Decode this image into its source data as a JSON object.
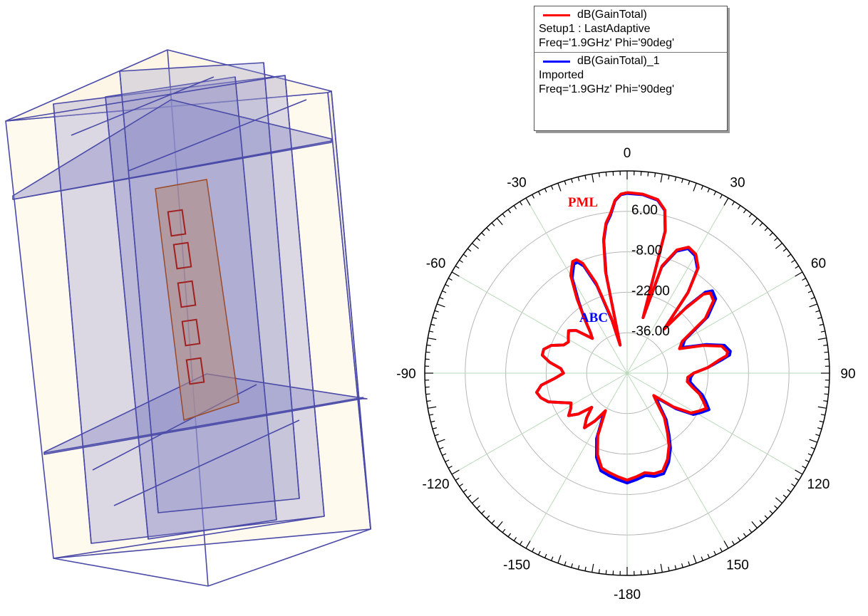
{
  "colors": {
    "series_a": "#ff0000",
    "series_b": "#0000ff",
    "grid": "#b9d8b9",
    "frame": "#000000"
  },
  "chart_data": {
    "type": "polar-line",
    "angle_unit": "deg",
    "angle_ticks": [
      "0",
      "30",
      "60",
      "90",
      "120",
      "150",
      "-180",
      "-150",
      "-120",
      "-90",
      "-60",
      "-30"
    ],
    "radial_ticks": [
      "6.00",
      "-8.00",
      "-22.00",
      "-36.00"
    ],
    "rlim": [
      -50,
      20
    ],
    "grid": true,
    "legend_position": "top-right",
    "annotations": [
      {
        "text": "PML",
        "color": "#ff0000"
      },
      {
        "text": "ABC",
        "color": "#0000ff"
      }
    ],
    "series": [
      {
        "name": "dB(GainTotal)",
        "legend_lines": [
          "Setup1 : LastAdaptive",
          "Freq='1.9GHz' Phi='90deg'"
        ],
        "color": "#ff0000",
        "theta": [
          0,
          5,
          10,
          13,
          15,
          16,
          18,
          22,
          26,
          30,
          34,
          37,
          40,
          42,
          44,
          46,
          50,
          55,
          60,
          65,
          70,
          74,
          78,
          80,
          82,
          86,
          90,
          94,
          98,
          102,
          106,
          110,
          114,
          118,
          122,
          126,
          130,
          134,
          140,
          146,
          150,
          155,
          160,
          165,
          170,
          175,
          180,
          185,
          190,
          195,
          200,
          205,
          210,
          214,
          218,
          222,
          226,
          230,
          234,
          238,
          242,
          246,
          250,
          254,
          258,
          262,
          266,
          270,
          274,
          278,
          282,
          286,
          290,
          294,
          298,
          302,
          306,
          310,
          315,
          318,
          322,
          326,
          330,
          334,
          336,
          338,
          341,
          344,
          346,
          348,
          350,
          352,
          354,
          356,
          358,
          360
        ],
        "r": [
          12.5,
          12.2,
          11,
          8,
          1,
          -30,
          -11,
          -4,
          -1.5,
          -2.5,
          -6,
          -15,
          -30,
          -20,
          -12,
          -10,
          -11,
          -17,
          -28,
          -30,
          -22,
          -16,
          -14.5,
          -15,
          -18,
          -22,
          -27,
          -29,
          -29,
          -27,
          -24,
          -22,
          -20,
          -22,
          -24,
          -30,
          -38,
          -36,
          -30,
          -25,
          -21,
          -17,
          -14,
          -14,
          -15,
          -14,
          -13,
          -14,
          -15,
          -16,
          -20,
          -26,
          -35,
          -30,
          -26,
          -29,
          -33,
          -28,
          -25,
          -27,
          -28,
          -25,
          -21,
          -19,
          -18,
          -20,
          -25,
          -28,
          -27,
          -23,
          -20,
          -20,
          -22,
          -26,
          -27,
          -26,
          -25,
          -27,
          -33,
          -31,
          -26,
          -19,
          -11,
          -7,
          -7,
          -9,
          -17,
          -30,
          -40,
          -14,
          -3,
          2.5,
          5.5,
          10,
          12,
          12.5
        ]
      },
      {
        "name": "dB(GainTotal)_1",
        "legend_lines": [
          "Imported",
          "Freq='1.9GHz' Phi='90deg'"
        ],
        "color": "#0000ff",
        "theta": [
          0,
          5,
          10,
          13,
          15,
          16,
          18,
          22,
          26,
          30,
          34,
          37,
          40,
          42,
          44,
          46,
          50,
          55,
          60,
          65,
          70,
          74,
          78,
          80,
          82,
          86,
          90,
          94,
          98,
          102,
          106,
          110,
          114,
          118,
          122,
          126,
          130,
          134,
          140,
          146,
          150,
          155,
          160,
          165,
          170,
          175,
          180,
          185,
          190,
          195,
          200,
          205,
          210,
          214,
          218,
          222,
          226,
          230,
          234,
          238,
          242,
          246,
          250,
          254,
          258,
          262,
          266,
          270,
          274,
          278,
          282,
          286,
          290,
          294,
          298,
          302,
          306,
          310,
          315,
          318,
          322,
          326,
          330,
          334,
          336,
          338,
          341,
          344,
          346,
          348,
          350,
          352,
          354,
          356,
          358,
          360
        ],
        "r": [
          12.2,
          12,
          10.8,
          7.8,
          0.8,
          -30,
          -11.4,
          -4.5,
          -2,
          -3,
          -6.5,
          -15,
          -30,
          -19,
          -11,
          -9,
          -10,
          -16,
          -27,
          -29,
          -21,
          -15,
          -13.5,
          -14,
          -17,
          -22,
          -27,
          -28,
          -28,
          -26,
          -23,
          -21,
          -19,
          -21,
          -23,
          -29,
          -37,
          -35,
          -29,
          -24,
          -20,
          -16,
          -13,
          -13,
          -14,
          -13,
          -12,
          -13,
          -14,
          -15,
          -19,
          -25,
          -34,
          -30,
          -26,
          -29,
          -33,
          -28,
          -25,
          -27,
          -28,
          -25,
          -21,
          -19,
          -18,
          -20,
          -25,
          -28,
          -27,
          -23,
          -20,
          -20,
          -22,
          -26,
          -27,
          -26,
          -25,
          -27,
          -33,
          -31,
          -26,
          -20,
          -12,
          -8,
          -8,
          -10,
          -18,
          -31,
          -40,
          -15,
          -3.5,
          2,
          5,
          9.8,
          11.8,
          12.2
        ]
      }
    ]
  }
}
